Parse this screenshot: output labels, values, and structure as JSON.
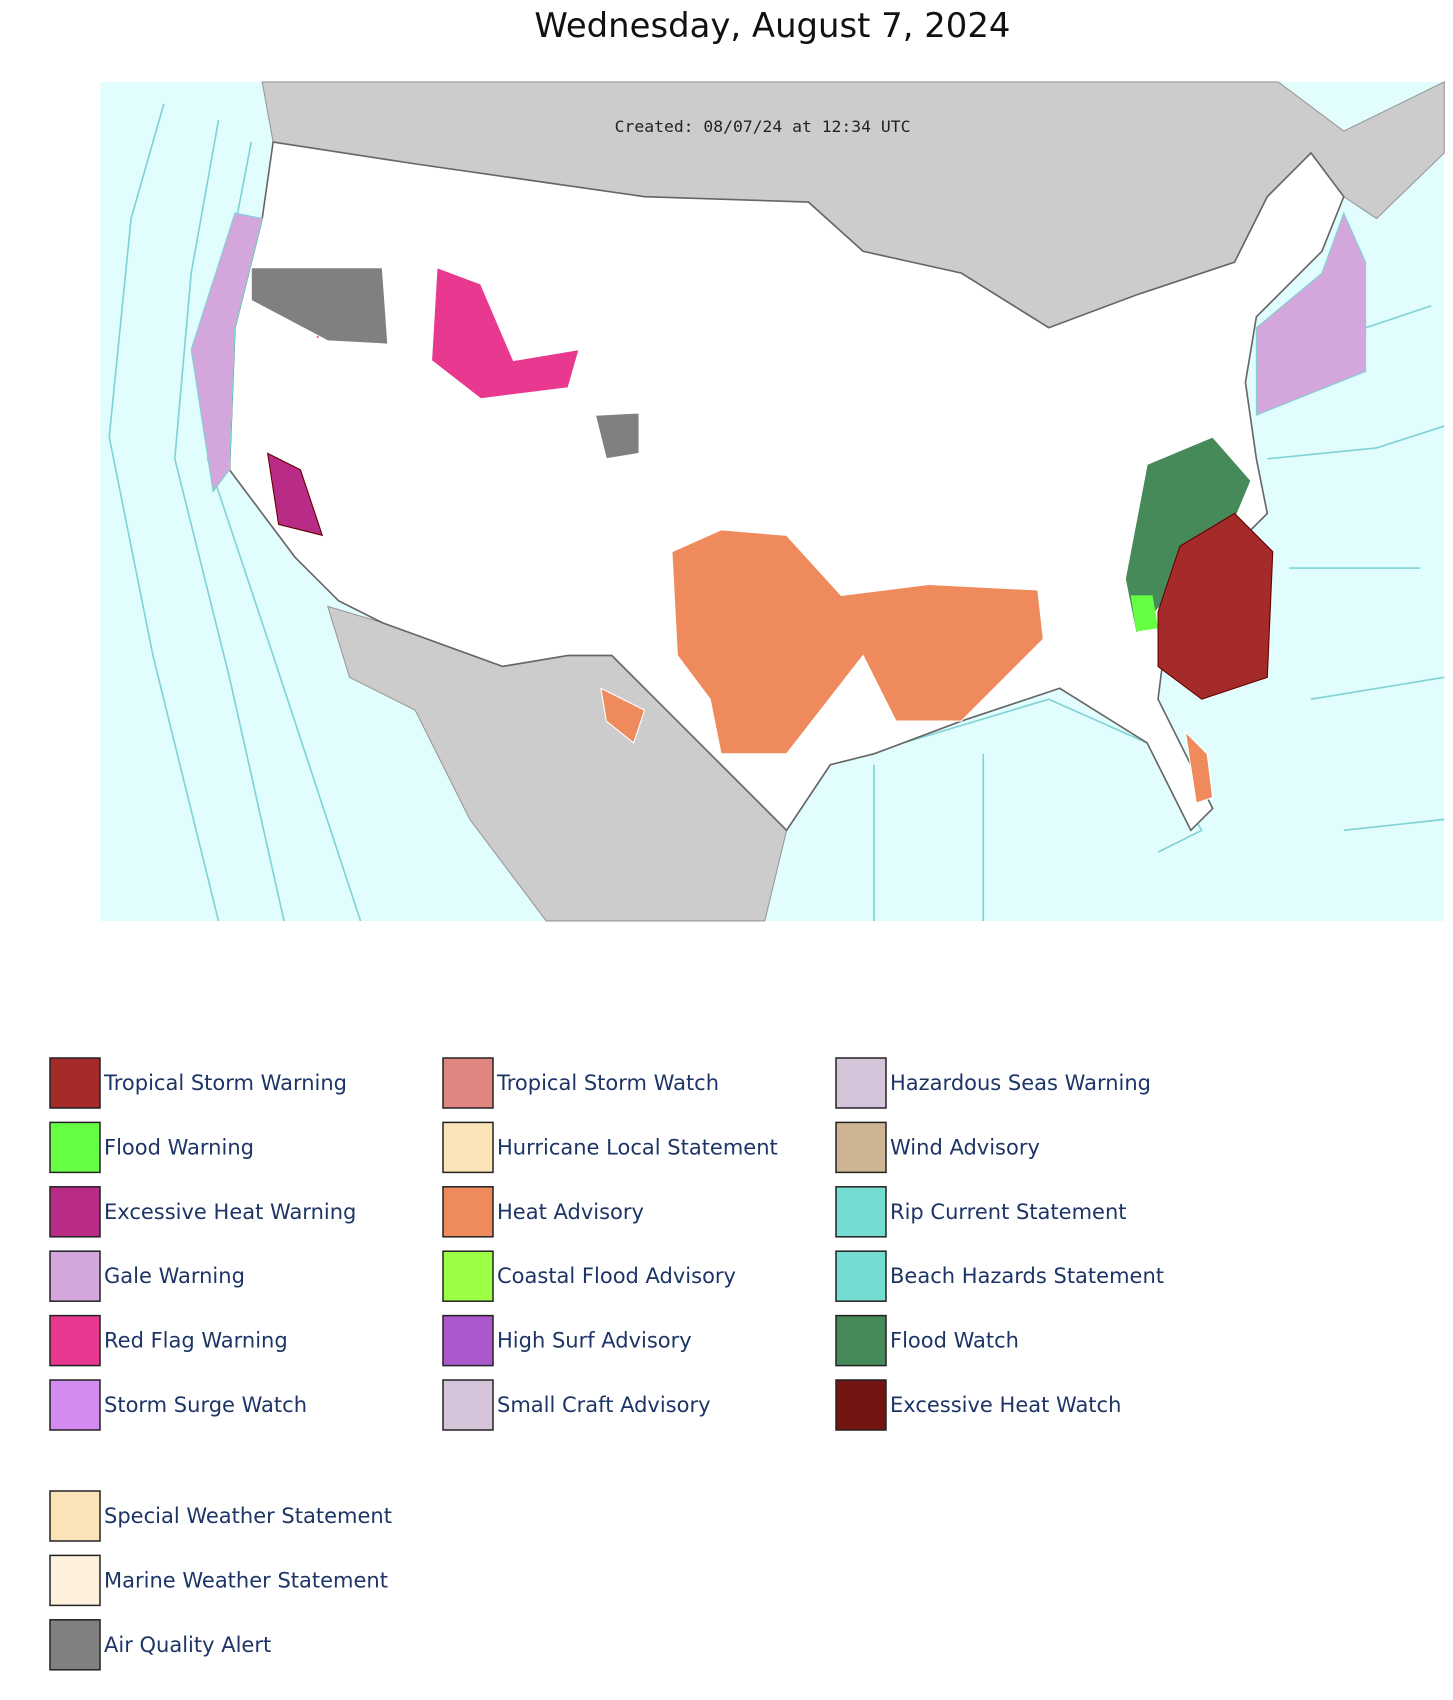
{
  "header": {
    "title": "Wednesday, August 7, 2024"
  },
  "map": {
    "created_label": "Created: 08/07/24 at 12:34 UTC"
  },
  "legend": {
    "groups": [
      {
        "columns": [
          [
            {
              "name": "Tropical Storm Warning",
              "color": "#a52a2a"
            },
            {
              "name": "Flood Warning",
              "color": "#66ff44"
            },
            {
              "name": "Excessive Heat Warning",
              "color": "#b82c87"
            },
            {
              "name": "Gale Warning",
              "color": "#d3a6dc"
            },
            {
              "name": "Red Flag Warning",
              "color": "#e8388f"
            },
            {
              "name": "Storm Surge Watch",
              "color": "#d38bf0"
            }
          ],
          [
            {
              "name": "Tropical Storm Watch",
              "color": "#e08680"
            },
            {
              "name": "Hurricane Local Statement",
              "color": "#fbe3b8"
            },
            {
              "name": "Heat Advisory",
              "color": "#ef8a5c"
            },
            {
              "name": "Coastal Flood Advisory",
              "color": "#9cff44"
            },
            {
              "name": "High Surf Advisory",
              "color": "#ab58cc"
            },
            {
              "name": "Small Craft Advisory",
              "color": "#d5c4da"
            }
          ],
          [
            {
              "name": "Hazardous Seas Warning",
              "color": "#d5c4da"
            },
            {
              "name": "Wind Advisory",
              "color": "#cdb593"
            },
            {
              "name": "Rip Current Statement",
              "color": "#74dcd0"
            },
            {
              "name": "Beach Hazards Statement",
              "color": "#74dcd0"
            },
            {
              "name": "Flood Watch",
              "color": "#468a5a"
            },
            {
              "name": "Excessive Heat Watch",
              "color": "#721510"
            }
          ]
        ]
      },
      {
        "columns": [
          [
            {
              "name": "Special Weather Statement",
              "color": "#fbe3b8"
            },
            {
              "name": "Marine Weather Statement",
              "color": "#fdf0dd"
            },
            {
              "name": "Air Quality Alert",
              "color": "#808080"
            }
          ]
        ]
      }
    ]
  }
}
